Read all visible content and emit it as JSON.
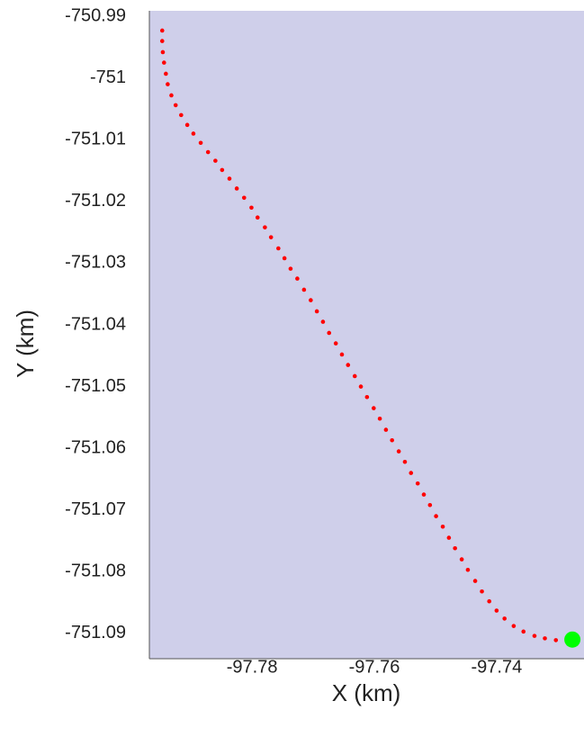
{
  "chart_data": {
    "type": "scatter",
    "xlabel": "X (km)",
    "ylabel": "Y (km)",
    "xlim": [
      -97.7968,
      -97.7257
    ],
    "ylim": [
      -751.0941,
      -750.9891
    ],
    "xticks": [
      -97.78,
      -97.76,
      -97.74
    ],
    "yticks": [
      -750.99,
      -751,
      -751.01,
      -751.02,
      -751.03,
      -751.04,
      -751.05,
      -751.06,
      -751.07,
      -751.08,
      -751.09
    ],
    "grid": false,
    "background": "#cfcfea",
    "series": [
      {
        "color": "#ff0000",
        "x": [
          -97.7947,
          -97.7947,
          -97.7946,
          -97.7944,
          -97.7941,
          -97.7938,
          -97.7932,
          -97.7925,
          -97.7916,
          -97.7906,
          -97.7896,
          -97.7884,
          -97.7872,
          -97.786,
          -97.7849,
          -97.7837,
          -97.7825,
          -97.7813,
          -97.7801,
          -97.7791,
          -97.7779,
          -97.7769,
          -97.7757,
          -97.7747,
          -97.7737,
          -97.7726,
          -97.7715,
          -97.7704,
          -97.7694,
          -97.7684,
          -97.7674,
          -97.7663,
          -97.7653,
          -97.7643,
          -97.7632,
          -97.7622,
          -97.7612,
          -97.7601,
          -97.7591,
          -97.7581,
          -97.7571,
          -97.756,
          -97.755,
          -97.754,
          -97.7529,
          -97.7519,
          -97.7509,
          -97.7499,
          -97.7488,
          -97.7478,
          -97.7468,
          -97.7457,
          -97.7447,
          -97.7435,
          -97.7424,
          -97.7412,
          -97.74,
          -97.7387,
          -97.7372,
          -97.7356,
          -97.7338,
          -97.7321,
          -97.7303,
          -97.7285,
          -97.7276
        ],
        "values": [
          -750.9923,
          -750.994,
          -750.9958,
          -750.9975,
          -750.9993,
          -751.001,
          -751.0028,
          -751.0044,
          -751.006,
          -751.0076,
          -751.009,
          -751.0105,
          -751.012,
          -751.0134,
          -751.0149,
          -751.0163,
          -751.0179,
          -751.0194,
          -751.021,
          -751.0226,
          -751.0242,
          -751.0258,
          -751.0276,
          -751.0292,
          -751.0309,
          -751.0325,
          -751.0343,
          -751.036,
          -751.0378,
          -751.0395,
          -751.0413,
          -751.043,
          -751.0448,
          -751.0465,
          -751.0483,
          -751.05,
          -751.0517,
          -751.0535,
          -751.0552,
          -751.057,
          -751.0587,
          -751.0605,
          -751.0622,
          -751.064,
          -751.0657,
          -751.0675,
          -751.0692,
          -751.071,
          -751.0727,
          -751.0745,
          -751.0762,
          -751.078,
          -751.0797,
          -751.0815,
          -751.0832,
          -751.0848,
          -751.0863,
          -751.0876,
          -751.0888,
          -751.0897,
          -751.0904,
          -751.0908,
          -751.0911,
          -751.0911,
          -751.0911
        ]
      }
    ],
    "end_point": {
      "x": -97.7276,
      "y": -751.091,
      "color": "#00ff00"
    }
  }
}
